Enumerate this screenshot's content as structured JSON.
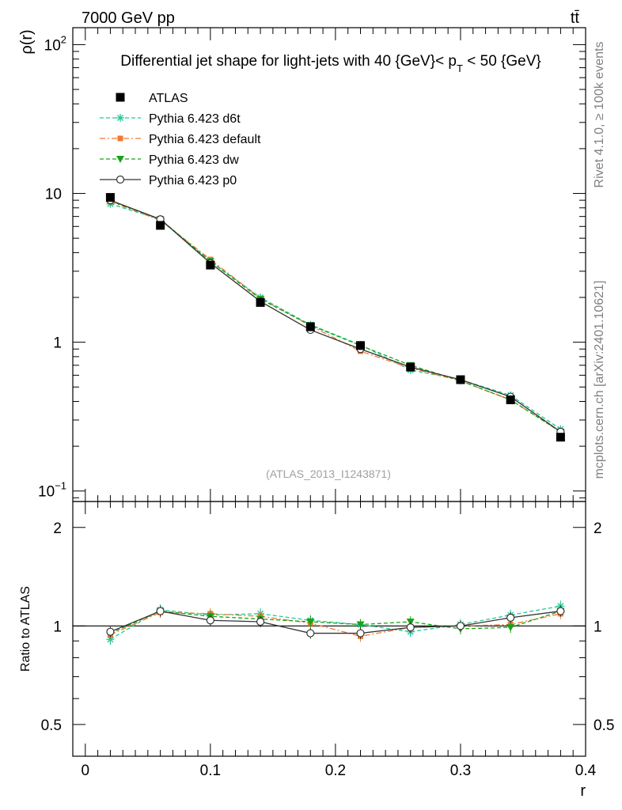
{
  "header": {
    "energy_label": "7000 GeV pp",
    "process_label": "tt̄",
    "side_label_top": "Rivet 4.1.0, ≥ 100k events",
    "side_label_bottom": "mcplots.cern.ch [arXiv:2401.10621]",
    "watermark": "(ATLAS_2013_I1243871)"
  },
  "chart_data": [
    {
      "type": "line",
      "panel": "main",
      "title": "Differential jet shape for light-jets with 40 {GeV}< p_T < 50 {GeV}",
      "title_parts": {
        "prefix": "Differential jet shape for light-jets with 40 {GeV}< p",
        "sub": "T",
        "suffix": " < 50 {GeV}"
      },
      "ylabel": "ρ(r)",
      "yscale": "log",
      "ylim": [
        0.085,
        130
      ],
      "xlim": [
        -0.01,
        0.4
      ],
      "y_ticks": [
        {
          "value": 0.1,
          "base": "10",
          "exp": "−1"
        },
        {
          "value": 1,
          "base": "1",
          "exp": ""
        },
        {
          "value": 10,
          "base": "10",
          "exp": ""
        },
        {
          "value": 100,
          "base": "10",
          "exp": "2"
        }
      ],
      "x": [
        0.02,
        0.06,
        0.1,
        0.14,
        0.18,
        0.22,
        0.26,
        0.3,
        0.34,
        0.38
      ],
      "series": [
        {
          "name": "ATLAS",
          "style": "data",
          "color": "#000000",
          "marker": "square",
          "values": [
            9.4,
            6.1,
            3.3,
            1.85,
            1.27,
            0.95,
            0.68,
            0.56,
            0.41,
            0.23
          ]
        },
        {
          "name": "Pythia 6.423 d6t",
          "style": "dashed",
          "color": "#1fc99a",
          "marker": "star",
          "values": [
            8.5,
            6.7,
            3.5,
            2.0,
            1.31,
            0.96,
            0.65,
            0.56,
            0.44,
            0.26
          ]
        },
        {
          "name": "Pythia 6.423 default",
          "style": "dashdot",
          "color": "#f07a30",
          "marker": "square-small",
          "values": [
            8.8,
            6.6,
            3.6,
            1.97,
            1.29,
            0.87,
            0.67,
            0.55,
            0.41,
            0.25
          ]
        },
        {
          "name": "Pythia 6.423 dw",
          "style": "dashed",
          "color": "#17a417",
          "marker": "triangle-down",
          "values": [
            8.9,
            6.7,
            3.5,
            1.95,
            1.3,
            0.95,
            0.7,
            0.55,
            0.41,
            0.25
          ]
        },
        {
          "name": "Pythia 6.423 p0",
          "style": "solid",
          "color": "#333333",
          "marker": "circle-open",
          "values": [
            9.0,
            6.7,
            3.4,
            1.88,
            1.21,
            0.9,
            0.68,
            0.56,
            0.43,
            0.25
          ]
        }
      ]
    },
    {
      "type": "line",
      "panel": "ratio",
      "ylabel": "Ratio to ATLAS",
      "xlabel": "r",
      "yscale": "log",
      "ylim": [
        0.4,
        2.4
      ],
      "xlim": [
        -0.01,
        0.4
      ],
      "y_ticks": [
        {
          "value": 0.5,
          "label": "0.5"
        },
        {
          "value": 1,
          "label": "1"
        },
        {
          "value": 2,
          "label": "2"
        }
      ],
      "x_ticks": [
        {
          "value": 0,
          "label": "0"
        },
        {
          "value": 0.1,
          "label": "0.1"
        },
        {
          "value": 0.2,
          "label": "0.2"
        },
        {
          "value": 0.3,
          "label": "0.3"
        },
        {
          "value": 0.4,
          "label": "0.4"
        }
      ],
      "reference": 1,
      "x": [
        0.02,
        0.06,
        0.1,
        0.14,
        0.18,
        0.22,
        0.26,
        0.3,
        0.34,
        0.38
      ],
      "series": [
        {
          "name": "Pythia 6.423 d6t",
          "style": "dashed",
          "color": "#1fc99a",
          "marker": "star",
          "values": [
            0.91,
            1.12,
            1.08,
            1.09,
            1.04,
            1.01,
            0.96,
            1.01,
            1.08,
            1.15
          ]
        },
        {
          "name": "Pythia 6.423 default",
          "style": "dashdot",
          "color": "#f07a30",
          "marker": "square-small",
          "values": [
            0.94,
            1.1,
            1.09,
            1.07,
            1.02,
            0.93,
            0.99,
            1.0,
            1.01,
            1.09
          ]
        },
        {
          "name": "Pythia 6.423 dw",
          "style": "dashed",
          "color": "#17a417",
          "marker": "triangle-down",
          "values": [
            0.95,
            1.11,
            1.07,
            1.05,
            1.03,
            1.01,
            1.03,
            0.98,
            0.99,
            1.11
          ]
        },
        {
          "name": "Pythia 6.423 p0",
          "style": "solid",
          "color": "#333333",
          "marker": "circle-open",
          "values": [
            0.96,
            1.11,
            1.04,
            1.03,
            0.95,
            0.95,
            0.99,
            1.0,
            1.06,
            1.11
          ]
        }
      ]
    }
  ]
}
